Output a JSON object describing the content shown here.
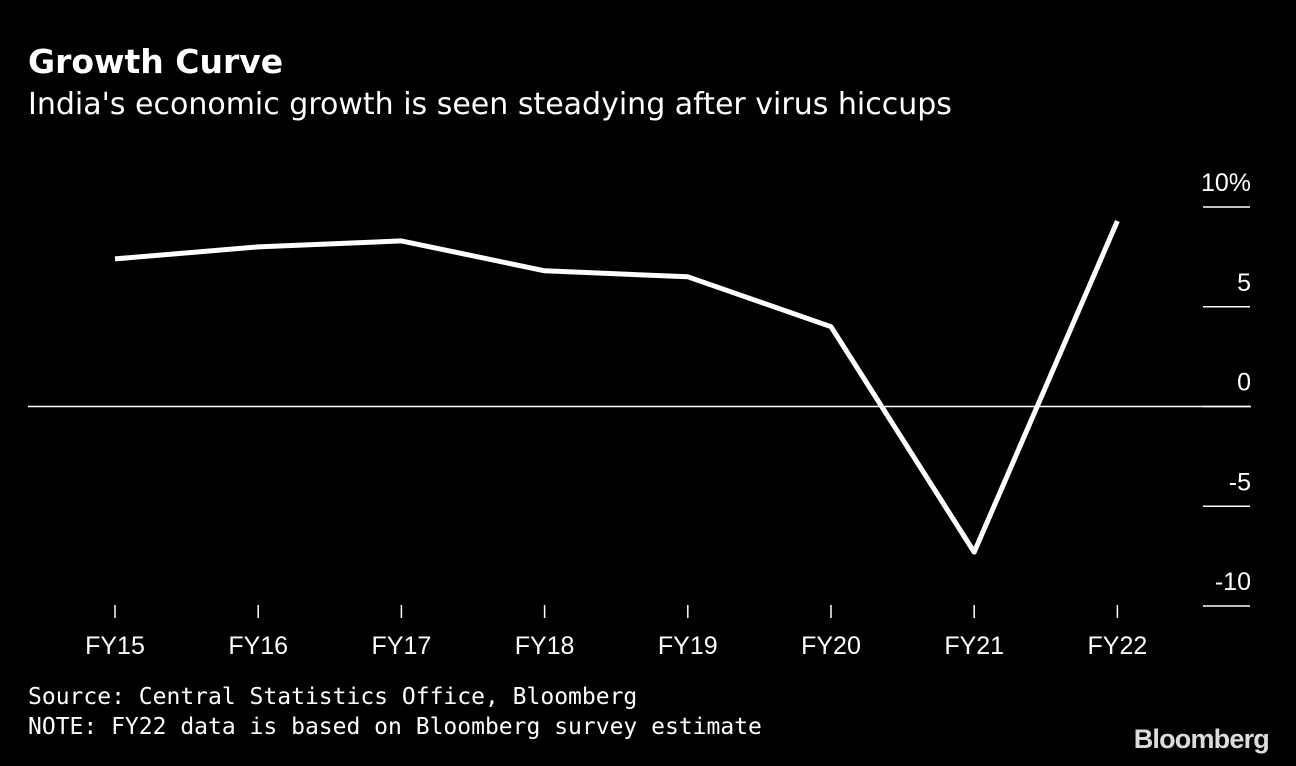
{
  "chart_data": {
    "type": "line",
    "title": "Growth Curve",
    "subtitle": "India's economic growth is seen steadying after virus hiccups",
    "categories": [
      "FY15",
      "FY16",
      "FY17",
      "FY18",
      "FY19",
      "FY20",
      "FY21",
      "FY22"
    ],
    "series": [
      {
        "values": [
          7.4,
          8.0,
          8.3,
          6.8,
          6.5,
          4.0,
          -7.3,
          9.3
        ]
      }
    ],
    "y_ticks": [
      {
        "value": 10,
        "label": "10%"
      },
      {
        "value": 5,
        "label": "5"
      },
      {
        "value": 0,
        "label": "0"
      },
      {
        "value": -5,
        "label": "-5"
      },
      {
        "value": -10,
        "label": "-10"
      }
    ],
    "ylim": [
      -10,
      10
    ],
    "y_axis_position": "right",
    "zero_line": true,
    "grid": false,
    "colors": {
      "background": "#000000",
      "line": "#ffffff",
      "text": "#ffffff"
    }
  },
  "footer": {
    "source": "Source: Central Statistics Office, Bloomberg",
    "note": "NOTE: FY22 data is based on Bloomberg survey estimate"
  },
  "logo": {
    "text": "Bloomberg"
  }
}
